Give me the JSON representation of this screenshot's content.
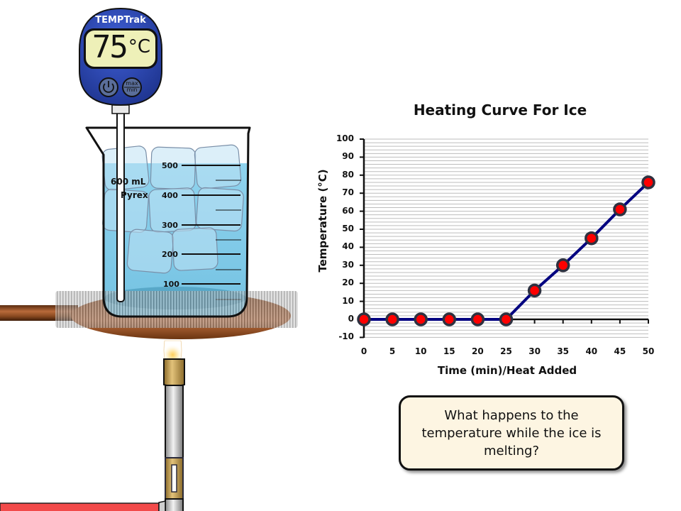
{
  "thermometer": {
    "brand": "TEMPTrak",
    "reading": "75",
    "unit": "°C",
    "buttons": [
      {
        "name": "power",
        "icon": "power-icon"
      },
      {
        "name": "max-min",
        "label_top": "max",
        "label_bottom": "min"
      }
    ]
  },
  "beaker": {
    "capacity_label": "600 mL",
    "brand_label": "Pyrex",
    "graduations": [
      "500",
      "400",
      "300",
      "200",
      "100"
    ],
    "contents": "ice cubes in water"
  },
  "apparatus": {
    "hot_plate": "wire gauze on ring stand",
    "burner": "Bunsen burner",
    "gas_hose_color": "#f04a4a"
  },
  "chart_data": {
    "type": "line",
    "title": "Heating Curve For Ice",
    "xlabel": "Time (min)/Heat Added",
    "ylabel": "Temperature (°C)",
    "x": [
      0,
      5,
      10,
      15,
      20,
      25,
      30,
      35,
      40,
      45,
      50
    ],
    "series": [
      {
        "name": "Temperature",
        "values": [
          0,
          0,
          0,
          0,
          0,
          0,
          16,
          30,
          45,
          61,
          76
        ],
        "line_color": "#000080",
        "marker_fill": "#ff0000",
        "marker_edge": "#2e3140"
      }
    ],
    "x_ticks": [
      "0",
      "5",
      "10",
      "15",
      "20",
      "25",
      "30",
      "35",
      "40",
      "45",
      "50"
    ],
    "y_ticks": [
      "100",
      "90",
      "80",
      "70",
      "60",
      "50",
      "40",
      "30",
      "20",
      "10",
      "0",
      "-10"
    ],
    "xlim": [
      0,
      50
    ],
    "ylim": [
      -10,
      100
    ],
    "grid": "horizontal minor gridlines every 2 units",
    "legend": "none"
  },
  "question": {
    "text": "What happens to the temperature while the ice is melting?"
  }
}
